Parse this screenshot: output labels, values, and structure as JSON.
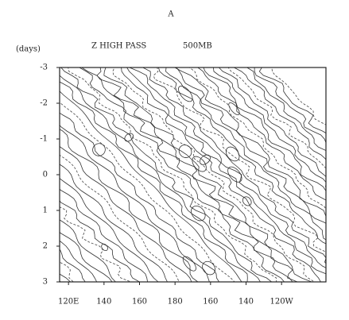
{
  "chart_data": {
    "type": "contour",
    "panel_label": "A",
    "title": "Z HIGH PASS",
    "subtitle": "500MB",
    "y_label": "(days)",
    "xlim": [
      115,
      265
    ],
    "xticks": [
      {
        "value": 120,
        "label": "120E"
      },
      140,
      160,
      180,
      {
        "value": 200,
        "label": "160"
      },
      {
        "value": 220,
        "label": "140"
      },
      {
        "value": 240,
        "label": "120W"
      }
    ],
    "ylim": [
      -3,
      3
    ],
    "y_inverted": true,
    "yticks": [
      -3,
      -2,
      -1,
      0,
      1,
      2,
      3
    ]
  }
}
